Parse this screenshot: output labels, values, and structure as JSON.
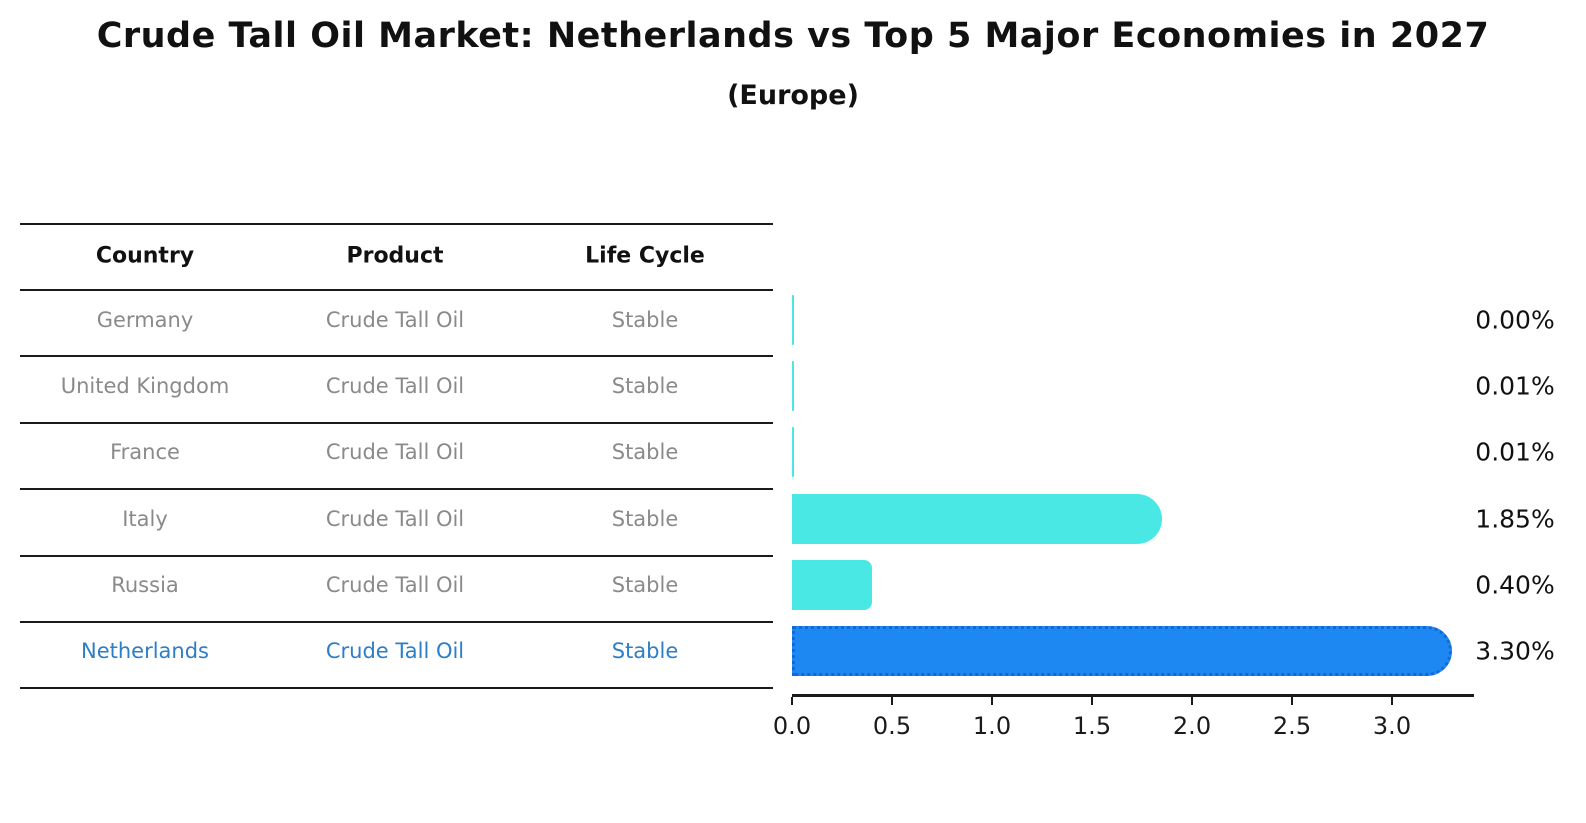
{
  "chart_data": {
    "type": "bar",
    "orientation": "horizontal",
    "title": "Crude Tall Oil Market: Netherlands vs Top 5 Major Economies in 2027",
    "subtitle": "(Europe)",
    "categories": [
      "Germany",
      "United Kingdom",
      "France",
      "Italy",
      "Russia",
      "Netherlands"
    ],
    "values": [
      0.0,
      0.01,
      0.01,
      1.85,
      0.4,
      3.3
    ],
    "value_labels": [
      "0.00%",
      "0.01%",
      "0.01%",
      "1.85%",
      "0.40%",
      "3.30%"
    ],
    "highlight_index": 5,
    "xlim": [
      0,
      3.4
    ],
    "xticks": [
      {
        "value": 0.0,
        "label": "0.0"
      },
      {
        "value": 0.5,
        "label": "0.5"
      },
      {
        "value": 1.0,
        "label": "1.0"
      },
      {
        "value": 1.5,
        "label": "1.5"
      },
      {
        "value": 2.0,
        "label": "2.0"
      },
      {
        "value": 2.5,
        "label": "2.5"
      },
      {
        "value": 3.0,
        "label": "3.0"
      }
    ],
    "grid": false,
    "legend": false
  },
  "table": {
    "headers": [
      "Country",
      "Product",
      "Life Cycle"
    ],
    "rows": [
      {
        "country": "Germany",
        "product": "Crude Tall Oil",
        "life_cycle": "Stable"
      },
      {
        "country": "United Kingdom",
        "product": "Crude Tall Oil",
        "life_cycle": "Stable"
      },
      {
        "country": "France",
        "product": "Crude Tall Oil",
        "life_cycle": "Stable"
      },
      {
        "country": "Italy",
        "product": "Crude Tall Oil",
        "life_cycle": "Stable"
      },
      {
        "country": "Russia",
        "product": "Crude Tall Oil",
        "life_cycle": "Stable"
      },
      {
        "country": "Netherlands",
        "product": "Crude Tall Oil",
        "life_cycle": "Stable"
      }
    ]
  },
  "colors": {
    "bar": "#4AE8E4",
    "highlight_bar": "#1E88F2",
    "highlight_border": "#1566D6",
    "highlight_text": "#2E7EC6",
    "row_text": "#8a8a8a",
    "axis": "#1a1a1a"
  }
}
